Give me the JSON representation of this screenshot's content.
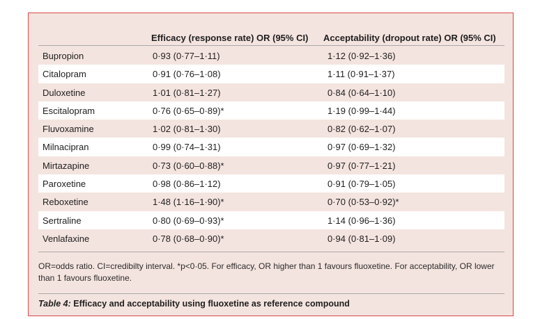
{
  "table": {
    "header_efficacy": "Efficacy (response rate) OR (95% CI)",
    "header_acceptability": "Acceptability (dropout rate) OR (95% CI)",
    "rows": [
      {
        "drug": "Bupropion",
        "efficacy": "0·93 (0·77–1·11)",
        "acceptability": "1·12 (0·92–1·36)"
      },
      {
        "drug": "Citalopram",
        "efficacy": "0·91 (0·76–1·08)",
        "acceptability": "1·11 (0·91–1·37)"
      },
      {
        "drug": "Duloxetine",
        "efficacy": "1·01 (0·81–1·27)",
        "acceptability": "0·84 (0·64–1·10)"
      },
      {
        "drug": "Escitalopram",
        "efficacy": "0·76 (0·65–0·89)*",
        "acceptability": "1·19 (0·99–1·44)"
      },
      {
        "drug": "Fluvoxamine",
        "efficacy": "1·02 (0·81–1·30)",
        "acceptability": "0·82 (0·62–1·07)"
      },
      {
        "drug": "Milnacipran",
        "efficacy": "0·99 (0·74–1·31)",
        "acceptability": "0·97 (0·69–1·32)"
      },
      {
        "drug": "Mirtazapine",
        "efficacy": "0·73 (0·60–0·88)*",
        "acceptability": "0·97 (0·77–1·21)"
      },
      {
        "drug": "Paroxetine",
        "efficacy": "0·98 (0·86–1·12)",
        "acceptability": "0·91 (0·79–1·05)"
      },
      {
        "drug": "Reboxetine",
        "efficacy": "1·48 (1·16–1·90)*",
        "acceptability": "0·70 (0·53–0·92)*"
      },
      {
        "drug": "Sertraline",
        "efficacy": "0·80 (0·69–0·93)*",
        "acceptability": "1·14 (0·96–1·36)"
      },
      {
        "drug": "Venlafaxine",
        "efficacy": "0·78 (0·68–0·90)*",
        "acceptability": "0·94 (0·81–1·09)"
      }
    ]
  },
  "footnote": "OR=odds ratio. CI=credibilty interval. *p<0·05. For efficacy, OR higher than 1 favours fluoxetine. For acceptability, OR lower than 1 favours fluoxetine.",
  "caption": {
    "label": "Table 4:",
    "text": " Efficacy and acceptability using fluoxetine as reference compound"
  },
  "colors": {
    "panel_background": "#f4e4df",
    "panel_border": "#d6474b",
    "alt_row": "#ffffff"
  }
}
